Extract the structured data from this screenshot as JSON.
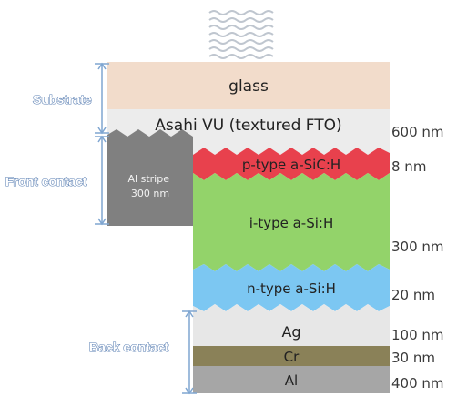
{
  "layers": {
    "glass": {
      "label": "glass",
      "color": "#f2dccb"
    },
    "fto": {
      "label": "Asahi VU (textured FTO)",
      "thickness": "600 nm",
      "color": "#ececec"
    },
    "p_type": {
      "label": "p-type a-SiC:H",
      "thickness": "8 nm",
      "color": "#e8414d"
    },
    "i_type": {
      "label": "i-type a-Si:H",
      "thickness": "300 nm",
      "color": "#93d36a"
    },
    "n_type": {
      "label": "n-type a-Si:H",
      "thickness": "20 nm",
      "color": "#7cc7f2"
    },
    "ag": {
      "label": "Ag",
      "thickness": "100 nm",
      "color": "#e7e7e7"
    },
    "cr": {
      "label": "Cr",
      "thickness": "30 nm",
      "color": "#8a8158"
    },
    "al": {
      "label": "Al",
      "thickness": "400 nm",
      "color": "#a6a6a6"
    }
  },
  "al_stripe": {
    "line1": "Al stripe",
    "line2": "300 nm",
    "color": "#808080"
  },
  "groups": {
    "substrate": "Substrate",
    "front_contact": "Front contact",
    "back_contact": "Back contact"
  },
  "colors": {
    "group_label_fill": "#ffffff",
    "group_label_outline": "#5a7fb3",
    "bracket": "#7fa6d1",
    "sunlight": "#bfc6cf"
  }
}
